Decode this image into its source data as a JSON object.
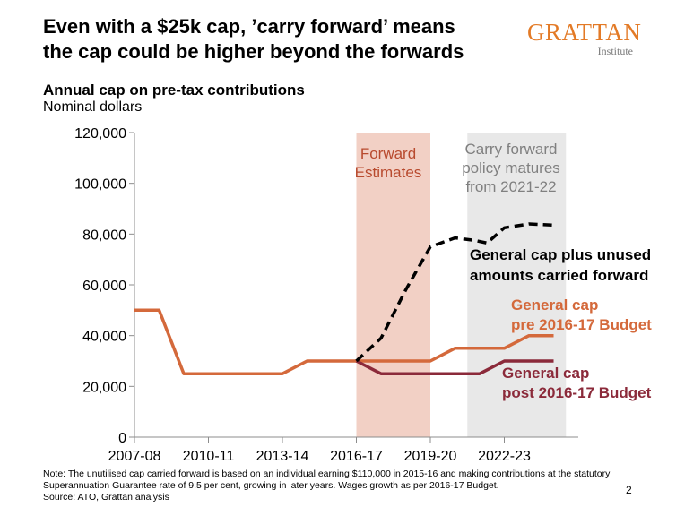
{
  "title_line1": "Even with a $25k cap, ’carry forward’ means",
  "title_line2": "the cap could be higher beyond the forwards",
  "logo": {
    "word": "GRATTAN",
    "sub": "Institute"
  },
  "subtitle": "Annual cap on pre-tax contributions",
  "units": "Nominal dollars",
  "note_lines": [
    "Note: The unutilised cap carried forward is based on an individual earning $110,000 in 2015-16 and making contributions at the statutory",
    "Superannuation  Guarantee rate of 9.5 per cent, growing in later years. Wages growth as per 2016-17 Budget.",
    "Source: ATO, Grattan analysis"
  ],
  "page_number": "2",
  "colors": {
    "forward_band": "#f2d0c5",
    "carry_band": "#e8e8e8",
    "series_pre": "#d4693b",
    "series_post": "#8b2a3a",
    "series_carry": "#000000"
  },
  "chart_data": {
    "type": "line",
    "ylim": [
      0,
      120000
    ],
    "yticks": [
      0,
      20000,
      40000,
      60000,
      80000,
      100000,
      120000
    ],
    "ytick_labels": [
      "0",
      "20,000",
      "40,000",
      "60,000",
      "80,000",
      "100,000",
      "120,000"
    ],
    "xlim": [
      2007,
      2025
    ],
    "xticks": [
      2007,
      2010,
      2013,
      2016,
      2019,
      2022
    ],
    "xtick_labels": [
      "2007-08",
      "2010-11",
      "2013-14",
      "2016-17",
      "2019-20",
      "2022-23"
    ],
    "shaded_regions": [
      {
        "label": [
          "Forward",
          "Estimates"
        ],
        "x_start": 2016,
        "x_end": 2019,
        "color_key": "forward_band",
        "label_color": "#b84a2e"
      },
      {
        "label": [
          "Carry forward",
          "policy matures",
          "from 2021-22"
        ],
        "x_start": 2020.5,
        "x_end": 2024.5,
        "color_key": "carry_band",
        "label_color": "#808080"
      }
    ],
    "series": [
      {
        "name": "General cap plus unused amounts carried forward",
        "label_lines": [
          "General cap plus unused",
          "amounts carried forward"
        ],
        "color_key": "series_carry",
        "dashed": true,
        "x": [
          2016,
          2017,
          2018,
          2019,
          2020,
          2020.8,
          2021.3,
          2022,
          2023,
          2024
        ],
        "y": [
          30000,
          39000,
          58000,
          75000,
          78500,
          77500,
          76500,
          82500,
          84000,
          83500
        ]
      },
      {
        "name": "General cap pre 2016-17 Budget",
        "label_lines": [
          "General cap",
          "pre 2016-17 Budget"
        ],
        "color_key": "series_pre",
        "dashed": false,
        "x": [
          2007,
          2008,
          2009,
          2010,
          2011,
          2012,
          2013,
          2014,
          2015,
          2016,
          2017,
          2018,
          2019,
          2020,
          2021,
          2022,
          2023,
          2024
        ],
        "y": [
          50000,
          50000,
          25000,
          25000,
          25000,
          25000,
          25000,
          30000,
          30000,
          30000,
          30000,
          30000,
          30000,
          35000,
          35000,
          35000,
          40000,
          40000
        ]
      },
      {
        "name": "General cap post 2016-17 Budget",
        "label_lines": [
          "General cap",
          "post 2016-17 Budget"
        ],
        "color_key": "series_post",
        "dashed": false,
        "x": [
          2016,
          2017,
          2018,
          2019,
          2020,
          2021,
          2022,
          2023,
          2024
        ],
        "y": [
          30000,
          25000,
          25000,
          25000,
          25000,
          25000,
          30000,
          30000,
          30000
        ]
      }
    ]
  }
}
